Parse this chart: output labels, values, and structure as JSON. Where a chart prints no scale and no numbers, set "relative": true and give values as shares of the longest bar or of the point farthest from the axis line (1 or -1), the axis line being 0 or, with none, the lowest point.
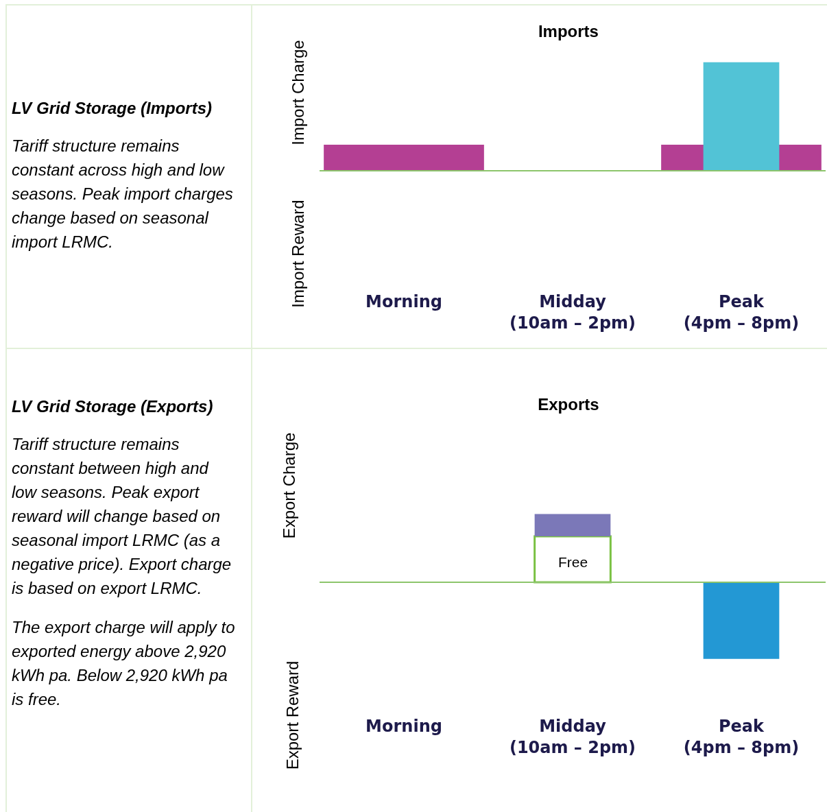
{
  "chart_data": [
    {
      "type": "other",
      "title": "LV Grid Storage (Imports)",
      "annotations": [
        "Tariff structure remains constant across high and low seasons. Peak import charges change based on seasonal import LRMC."
      ]
    },
    {
      "type": "bar",
      "title": "Imports",
      "ylabel": "Import Charge",
      "annotations": [
        "Import Reward"
      ],
      "ref_lines": [
        {
          "axis": "y",
          "value": 0,
          "color": "#8cc56b"
        }
      ],
      "relative": true,
      "categories": [
        "Morning",
        "Midday\n(10am – 2pm)",
        "Peak\n(4pm – 8pm)"
      ],
      "series": [
        {
          "color": "#b43f93",
          "values": [
            0.24,
            null,
            0.24
          ]
        },
        {
          "color": "#52c3d6",
          "values": [
            null,
            null,
            1
          ]
        }
      ]
    },
    {
      "type": "other",
      "title": "LV Grid Storage (Exports)",
      "annotations": [
        "Tariff structure remains constant between high and low seasons. Peak export reward will change based on seasonal import LRMC (as a negative price). Export charge is based on export LRMC.",
        "The export charge will apply to exported energy above 2,920 kWh pa. Below 2,920 kWh pa is free."
      ]
    },
    {
      "type": "bar",
      "title": "Exports",
      "ylabel": "Export Charge",
      "annotations": [
        "Export Reward",
        {
          "text": "Free",
          "x": "Midday\n(10am – 2pm)",
          "y": 0.6
        }
      ],
      "ref_lines": [
        {
          "axis": "y",
          "value": 0,
          "color": "#8cc56b"
        }
      ],
      "relative": true,
      "stacked": true,
      "categories": [
        "Morning",
        "Midday\n(10am – 2pm)",
        "Peak\n(4pm – 8pm)"
      ],
      "series": [
        {
          "color": "#ffffff",
          "values": [
            null,
            0.6,
            null
          ]
        },
        {
          "color": "#7b78b8",
          "values": [
            null,
            0.29,
            null
          ]
        },
        {
          "color": "#2398d4",
          "values": [
            null,
            null,
            -1
          ]
        }
      ]
    }
  ]
}
